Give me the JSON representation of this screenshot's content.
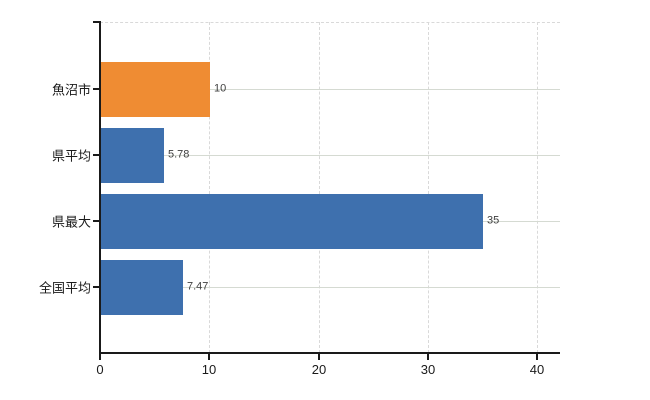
{
  "chart_data": {
    "type": "bar",
    "orientation": "horizontal",
    "title": "",
    "xlabel": "",
    "ylabel": "",
    "categories": [
      "魚沼市",
      "県平均",
      "県最大",
      "全国平均"
    ],
    "values": [
      10,
      5.78,
      35,
      7.47
    ],
    "value_labels": [
      "10",
      "5.78",
      "35",
      "7.47"
    ],
    "bar_colors": [
      "#ef8c33",
      "#3e70ae",
      "#3e70ae",
      "#3e70ae"
    ],
    "x_ticks": [
      0,
      10,
      20,
      30,
      40
    ],
    "x_tick_labels": [
      "0",
      "10",
      "20",
      "30",
      "40"
    ],
    "xlim": [
      0,
      42.1
    ],
    "grid": {
      "vertical": "dashed",
      "horizontal": "solid",
      "top_border": "dashed"
    },
    "legend": "none",
    "colors": {
      "highlight_bar": "#ef8c33",
      "default_bar": "#3e70ae",
      "axis": "#1a1a1a",
      "vertical_gridline": "#d9d9d9",
      "horizontal_gridline": "#d5dad2",
      "category_text": "#1a1a1a",
      "value_text": "#404040",
      "background": "#ffffff"
    }
  }
}
